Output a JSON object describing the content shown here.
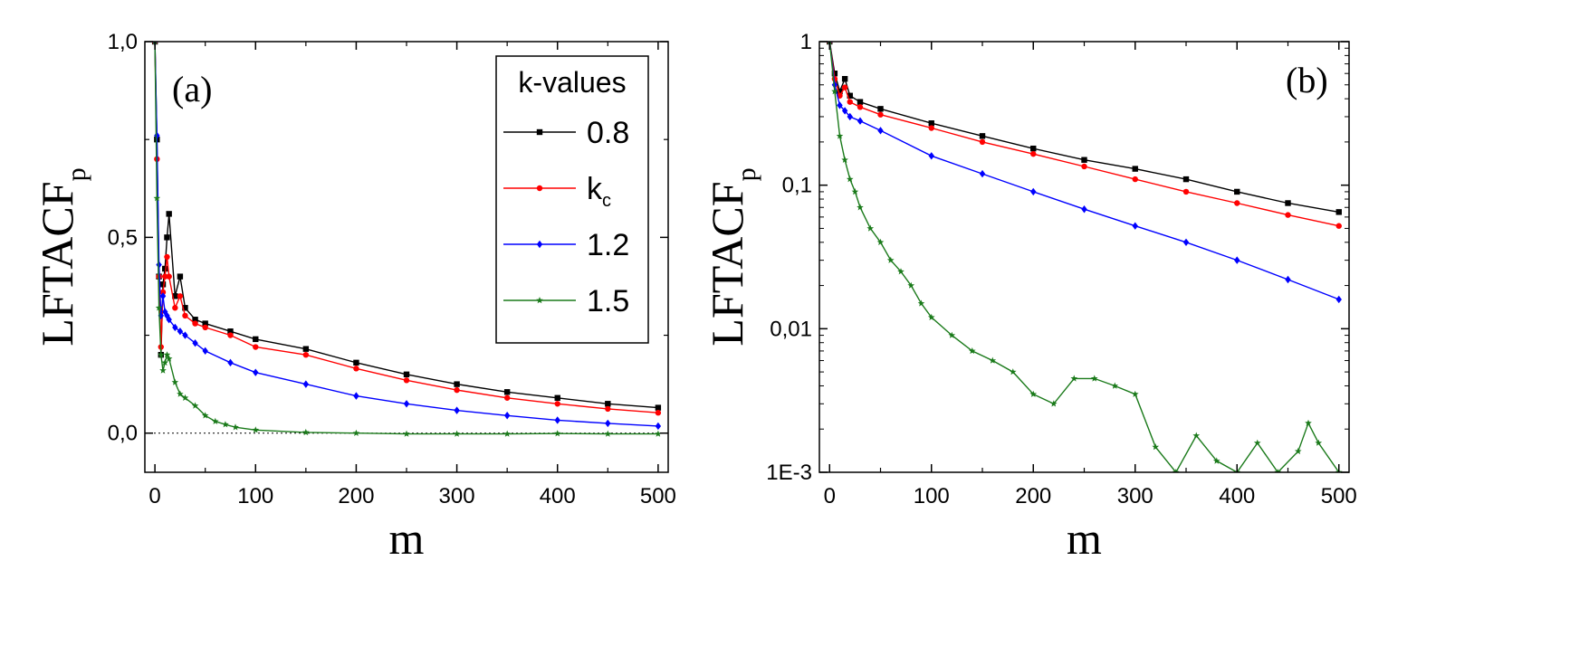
{
  "chart_data": [
    {
      "type": "line",
      "panel_label": "(a)",
      "title": "",
      "xlabel": "m",
      "ylabel_main": "LFTACF",
      "ylabel_sub": "p",
      "xlim": [
        -10,
        510
      ],
      "ylim": [
        -0.1,
        1.0
      ],
      "yscale": "linear",
      "x_ticks": [
        0,
        100,
        200,
        300,
        400,
        500
      ],
      "x_tick_labels": [
        "0",
        "100",
        "200",
        "300",
        "400",
        "500"
      ],
      "y_ticks": [
        0.0,
        0.5,
        1.0
      ],
      "y_tick_labels": [
        "0,0",
        "0,5",
        "1,0"
      ],
      "reference_line": 0.0,
      "legend": {
        "title": "k-values",
        "placement": "top-right",
        "entries": [
          "0.8",
          "k",
          "1.2",
          "1.5"
        ],
        "entry_subscripts": [
          "",
          "c",
          "",
          ""
        ]
      },
      "series": [
        {
          "name": "0.8",
          "color": "#000000",
          "marker": "square",
          "x": [
            0,
            2,
            4,
            6,
            8,
            10,
            12,
            14,
            20,
            25,
            30,
            40,
            50,
            75,
            100,
            150,
            200,
            250,
            300,
            350,
            400,
            450,
            500
          ],
          "values": [
            1.0,
            0.75,
            0.4,
            0.2,
            0.38,
            0.42,
            0.5,
            0.56,
            0.35,
            0.4,
            0.32,
            0.29,
            0.28,
            0.26,
            0.24,
            0.215,
            0.18,
            0.15,
            0.125,
            0.105,
            0.09,
            0.075,
            0.065
          ]
        },
        {
          "name": "kc",
          "color": "#ff0000",
          "marker": "circle",
          "x": [
            0,
            2,
            4,
            6,
            8,
            10,
            12,
            14,
            20,
            25,
            30,
            40,
            50,
            75,
            100,
            150,
            200,
            250,
            300,
            350,
            400,
            450,
            500
          ],
          "values": [
            1.0,
            0.7,
            0.4,
            0.22,
            0.36,
            0.4,
            0.45,
            0.4,
            0.32,
            0.35,
            0.3,
            0.28,
            0.27,
            0.25,
            0.22,
            0.2,
            0.165,
            0.135,
            0.11,
            0.09,
            0.075,
            0.062,
            0.052
          ]
        },
        {
          "name": "1.2",
          "color": "#0000ff",
          "marker": "diamond",
          "x": [
            0,
            2,
            4,
            6,
            8,
            10,
            12,
            14,
            20,
            25,
            30,
            40,
            50,
            75,
            100,
            150,
            200,
            250,
            300,
            350,
            400,
            450,
            500
          ],
          "values": [
            1.0,
            0.76,
            0.43,
            0.3,
            0.35,
            0.31,
            0.3,
            0.29,
            0.27,
            0.26,
            0.25,
            0.23,
            0.21,
            0.18,
            0.155,
            0.125,
            0.095,
            0.075,
            0.058,
            0.045,
            0.033,
            0.025,
            0.018
          ]
        },
        {
          "name": "1.5",
          "color": "#1a7a1a",
          "marker": "star",
          "x": [
            0,
            2,
            4,
            6,
            8,
            10,
            12,
            14,
            20,
            25,
            30,
            40,
            50,
            60,
            70,
            80,
            100,
            150,
            200,
            250,
            300,
            350,
            400,
            450,
            500
          ],
          "values": [
            1.0,
            0.6,
            0.32,
            0.2,
            0.16,
            0.18,
            0.2,
            0.19,
            0.13,
            0.1,
            0.09,
            0.07,
            0.045,
            0.03,
            0.022,
            0.015,
            0.008,
            0.002,
            0.0,
            -0.002,
            -0.002,
            -0.002,
            -0.001,
            -0.002,
            -0.002
          ]
        }
      ]
    },
    {
      "type": "line",
      "panel_label": "(b)",
      "title": "",
      "xlabel": "m",
      "ylabel_main": "LFTACF",
      "ylabel_sub": "p",
      "xlim": [
        -10,
        510
      ],
      "ylim": [
        0.001,
        1
      ],
      "yscale": "log",
      "x_ticks": [
        0,
        100,
        200,
        300,
        400,
        500
      ],
      "x_tick_labels": [
        "0",
        "100",
        "200",
        "300",
        "400",
        "500"
      ],
      "y_ticks": [
        0.001,
        0.01,
        0.1,
        1
      ],
      "y_tick_labels": [
        "1E-3",
        "0,01",
        "0,1",
        "1"
      ],
      "series": [
        {
          "name": "0.8",
          "color": "#000000",
          "marker": "square",
          "x": [
            0,
            5,
            10,
            15,
            20,
            30,
            50,
            100,
            150,
            200,
            250,
            300,
            350,
            400,
            450,
            500
          ],
          "values": [
            1.0,
            0.6,
            0.45,
            0.55,
            0.42,
            0.38,
            0.34,
            0.27,
            0.22,
            0.18,
            0.15,
            0.13,
            0.11,
            0.09,
            0.075,
            0.065
          ]
        },
        {
          "name": "kc",
          "color": "#ff0000",
          "marker": "circle",
          "x": [
            0,
            5,
            10,
            15,
            20,
            30,
            50,
            100,
            150,
            200,
            250,
            300,
            350,
            400,
            450,
            500
          ],
          "values": [
            1.0,
            0.55,
            0.42,
            0.48,
            0.38,
            0.35,
            0.31,
            0.25,
            0.2,
            0.165,
            0.135,
            0.11,
            0.09,
            0.075,
            0.062,
            0.052
          ]
        },
        {
          "name": "1.2",
          "color": "#0000ff",
          "marker": "diamond",
          "x": [
            0,
            5,
            10,
            15,
            20,
            30,
            50,
            100,
            150,
            200,
            250,
            300,
            350,
            400,
            450,
            500
          ],
          "values": [
            1.0,
            0.5,
            0.36,
            0.33,
            0.3,
            0.28,
            0.24,
            0.16,
            0.12,
            0.09,
            0.068,
            0.052,
            0.04,
            0.03,
            0.022,
            0.016
          ]
        },
        {
          "name": "1.5",
          "color": "#1a7a1a",
          "marker": "star",
          "x": [
            0,
            5,
            10,
            15,
            20,
            25,
            30,
            40,
            50,
            60,
            70,
            80,
            90,
            100,
            120,
            140,
            160,
            180,
            200,
            220,
            240,
            260,
            280,
            300,
            320,
            340,
            360,
            380,
            400,
            420,
            440,
            460,
            470,
            480,
            500
          ],
          "values": [
            1.0,
            0.45,
            0.22,
            0.15,
            0.11,
            0.09,
            0.07,
            0.05,
            0.04,
            0.03,
            0.025,
            0.02,
            0.015,
            0.012,
            0.009,
            0.007,
            0.006,
            0.005,
            0.0035,
            0.003,
            0.0045,
            0.0045,
            0.004,
            0.0035,
            0.0015,
            0.001,
            0.0018,
            0.0012,
            0.001,
            0.0016,
            0.001,
            0.0014,
            0.0022,
            0.0016,
            0.001
          ]
        }
      ]
    }
  ]
}
